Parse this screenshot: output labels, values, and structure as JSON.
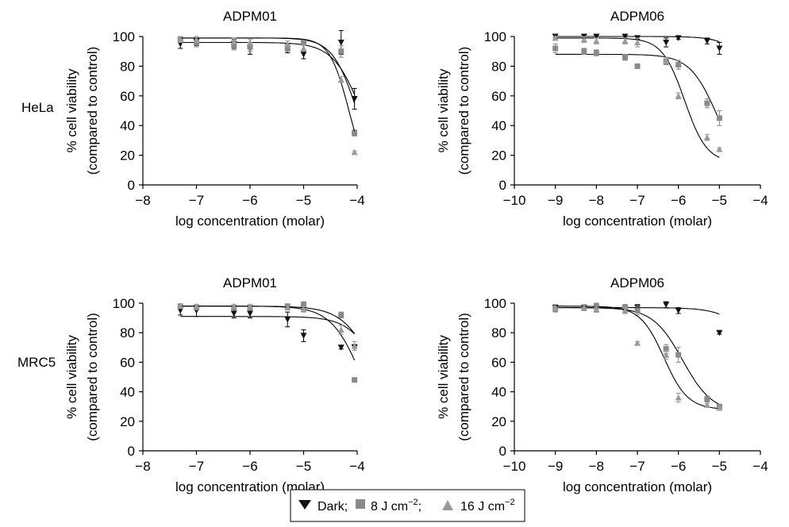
{
  "row_labels": [
    "HeLa",
    "MRC5"
  ],
  "legend": {
    "dark": "Dark;",
    "light8": "8 J cm",
    "light8_sup": "−2",
    "light16": "16 J cm",
    "light16_sup": "−2",
    "sep": ";"
  },
  "colors": {
    "dark": "#111111",
    "light8": "#8a8a8a",
    "light16": "#9a9a9a",
    "axis": "#000000"
  },
  "chart_data": [
    {
      "type": "scatter",
      "title": "ADPM01",
      "row": "HeLa",
      "xlabel": "log concentration (molar)",
      "ylabel": [
        "% cell viability",
        "(compared to control)"
      ],
      "xlim": [
        -8,
        -4
      ],
      "ylim": [
        0,
        100
      ],
      "xticks": [
        "−8",
        "−7",
        "−6",
        "−5",
        "−4"
      ],
      "yticks": [
        "0",
        "20",
        "40",
        "60",
        "80",
        "100"
      ],
      "series": [
        {
          "name": "Dark",
          "marker": "triangle-down",
          "x": [
            -7.3,
            -7.0,
            -6.3,
            -6.0,
            -5.3,
            -5.0,
            -4.3,
            -4.05
          ],
          "y": [
            95,
            97,
            95,
            92,
            92,
            88,
            96,
            58
          ],
          "err": [
            3,
            3,
            3,
            4,
            3,
            3,
            8,
            7
          ],
          "fit": {
            "top": 96,
            "bottom": 0,
            "logec50": -3.9,
            "hill": 1.6
          }
        },
        {
          "name": "8 J cm-2",
          "marker": "square",
          "x": [
            -7.3,
            -7.0,
            -6.3,
            -6.0,
            -5.3,
            -5.0,
            -4.3,
            -4.05
          ],
          "y": [
            98,
            96,
            94,
            93,
            92,
            96,
            90,
            35
          ],
          "err": [
            2,
            3,
            3,
            3,
            2,
            2,
            4,
            2
          ],
          "fit": {
            "top": 99,
            "bottom": 0,
            "logec50": -4.0,
            "hill": 1.9
          }
        },
        {
          "name": "16 J cm-2",
          "marker": "triangle-up",
          "x": [
            -7.3,
            -7.0,
            -6.3,
            -6.0,
            -5.3,
            -5.0,
            -4.3,
            -4.05
          ],
          "y": [
            98,
            98,
            97,
            96,
            95,
            92,
            71,
            22
          ],
          "err": [
            2,
            2,
            2,
            2,
            2,
            2,
            2,
            1
          ],
          "fit": {
            "top": 99,
            "bottom": 0,
            "logec50": -4.15,
            "hill": 2.4
          }
        }
      ]
    },
    {
      "type": "scatter",
      "title": "ADPM06",
      "row": "HeLa",
      "xlabel": "log concentration (molar)",
      "ylabel": [
        "% cell viability",
        "(compared to control)"
      ],
      "xlim": [
        -10,
        -4
      ],
      "ylim": [
        0,
        100
      ],
      "xticks": [
        "−10",
        "−9",
        "−8",
        "−7",
        "−6",
        "−5",
        "−4"
      ],
      "yticks": [
        "0",
        "20",
        "40",
        "60",
        "80",
        "100"
      ],
      "series": [
        {
          "name": "Dark",
          "marker": "triangle-down",
          "x": [
            -9.0,
            -8.3,
            -8.0,
            -7.3,
            -7.0,
            -6.3,
            -6.0,
            -5.3,
            -5.0
          ],
          "y": [
            100,
            100,
            100,
            100,
            99,
            96,
            99,
            97,
            92
          ],
          "err": [
            1,
            1,
            1,
            1,
            1,
            3,
            1,
            2,
            4
          ],
          "fit": {
            "top": 100,
            "bottom": 0,
            "logec50": -3.9,
            "hill": 1.3
          }
        },
        {
          "name": "8 J cm-2",
          "marker": "square",
          "x": [
            -9.0,
            -8.3,
            -8.0,
            -7.3,
            -7.0,
            -6.3,
            -6.0,
            -5.3,
            -5.0
          ],
          "y": [
            92,
            90,
            89,
            86,
            80,
            83,
            81,
            55,
            45
          ],
          "err": [
            3,
            2,
            2,
            2,
            1,
            2,
            3,
            3,
            5
          ],
          "fit": {
            "top": 88,
            "bottom": 5,
            "logec50": -5.05,
            "hill": 1.3
          }
        },
        {
          "name": "16 J cm-2",
          "marker": "triangle-up",
          "x": [
            -9.0,
            -8.3,
            -8.0,
            -7.3,
            -7.0,
            -6.3,
            -6.0,
            -5.3,
            -5.0
          ],
          "y": [
            99,
            98,
            97,
            97,
            96,
            84,
            60,
            32,
            24
          ],
          "err": [
            1,
            2,
            2,
            2,
            3,
            2,
            2,
            2,
            1
          ],
          "fit": {
            "top": 99,
            "bottom": 15,
            "logec50": -5.85,
            "hill": 1.6
          }
        }
      ]
    },
    {
      "type": "scatter",
      "title": "ADPM01",
      "row": "MRC5",
      "xlabel": "log concentration (molar)",
      "ylabel": [
        "% cell viability",
        "(compared to control)"
      ],
      "xlim": [
        -8,
        -4
      ],
      "ylim": [
        0,
        100
      ],
      "xticks": [
        "−8",
        "−7",
        "−6",
        "−5",
        "−4"
      ],
      "yticks": [
        "0",
        "20",
        "40",
        "60",
        "80",
        "100"
      ],
      "series": [
        {
          "name": "Dark",
          "marker": "triangle-down",
          "x": [
            -7.3,
            -7.0,
            -6.3,
            -6.0,
            -5.3,
            -5.0,
            -4.3,
            -4.05
          ],
          "y": [
            95,
            95,
            93,
            93,
            89,
            78,
            70,
            70
          ],
          "err": [
            3,
            4,
            3,
            3,
            5,
            4,
            1,
            2
          ],
          "fit": {
            "top": 91,
            "bottom": 0,
            "logec50": -3.5,
            "hill": 1.5
          }
        },
        {
          "name": "8 J cm-2",
          "marker": "square",
          "x": [
            -7.3,
            -7.0,
            -6.3,
            -6.0,
            -5.3,
            -5.0,
            -4.3,
            -4.05
          ],
          "y": [
            98,
            97,
            97,
            97,
            98,
            99,
            92,
            48
          ],
          "err": [
            1,
            1,
            1,
            1,
            1,
            2,
            2,
            1
          ],
          "fit": {
            "top": 98,
            "bottom": 0,
            "logec50": -3.9,
            "hill": 1.5
          }
        },
        {
          "name": "16 J cm-2",
          "marker": "triangle-up",
          "x": [
            -7.3,
            -7.0,
            -6.3,
            -6.0,
            -5.3,
            -5.0,
            -4.3,
            -4.05
          ],
          "y": [
            98,
            98,
            98,
            98,
            97,
            96,
            82,
            71
          ],
          "err": [
            1,
            1,
            1,
            1,
            1,
            2,
            3,
            3
          ],
          "fit": {
            "top": 98,
            "bottom": 0,
            "logec50": -3.6,
            "hill": 1.4
          }
        }
      ]
    },
    {
      "type": "scatter",
      "title": "ADPM06",
      "row": "MRC5",
      "xlabel": "log concentration (molar)",
      "ylabel": [
        "% cell viability",
        "(compared to control)"
      ],
      "xlim": [
        -10,
        -4
      ],
      "ylim": [
        0,
        100
      ],
      "xticks": [
        "−10",
        "−9",
        "−8",
        "−7",
        "−6",
        "−5",
        "−4"
      ],
      "yticks": [
        "0",
        "20",
        "40",
        "60",
        "80",
        "100"
      ],
      "series": [
        {
          "name": "Dark",
          "marker": "triangle-down",
          "x": [
            -9.0,
            -8.3,
            -8.0,
            -7.3,
            -7.0,
            -6.3,
            -6.0,
            -5.0
          ],
          "y": [
            97,
            97,
            96,
            97,
            97,
            99,
            95,
            80
          ],
          "err": [
            2,
            2,
            2,
            2,
            2,
            2,
            2,
            1
          ],
          "fit": {
            "top": 97,
            "bottom": 0,
            "logec50": -3.8,
            "hill": 1.1
          }
        },
        {
          "name": "8 J cm-2",
          "marker": "square",
          "x": [
            -9.0,
            -8.3,
            -8.0,
            -7.3,
            -7.0,
            -6.3,
            -6.0,
            -5.3,
            -5.0
          ],
          "y": [
            96,
            97,
            98,
            97,
            95,
            69,
            65,
            35,
            30
          ],
          "err": [
            2,
            2,
            2,
            2,
            3,
            3,
            5,
            2,
            1
          ],
          "fit": {
            "top": 97,
            "bottom": 26,
            "logec50": -5.9,
            "hill": 1.2
          }
        },
        {
          "name": "16 J cm-2",
          "marker": "triangle-up",
          "x": [
            -9.0,
            -8.3,
            -8.0,
            -7.3,
            -7.0,
            -6.3,
            -6.0,
            -5.3,
            -5.0
          ],
          "y": [
            97,
            97,
            96,
            95,
            73,
            65,
            36,
            31,
            29
          ],
          "err": [
            2,
            2,
            2,
            2,
            1,
            3,
            3,
            1,
            1
          ],
          "fit": {
            "top": 98,
            "bottom": 28,
            "logec50": -6.35,
            "hill": 1.5
          }
        }
      ]
    }
  ]
}
